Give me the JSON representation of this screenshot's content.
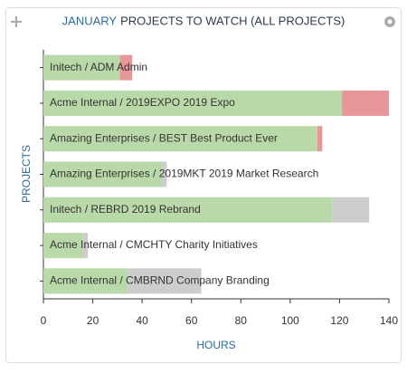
{
  "chart_data": {
    "type": "bar",
    "orientation": "horizontal",
    "stacked": true,
    "title_highlight": "JANUARY",
    "title": "PROJECTS TO WATCH (ALL PROJECTS)",
    "x_label": "HOURS",
    "y_label": "PROJECTS",
    "categories": [
      "Initech / ADM Admin",
      "Acme Internal / 2019EXPO 2019 Expo",
      "Amazing Enterprises / BEST Best Product Ever",
      "Amazing Enterprises / 2019MKT 2019 Market Research",
      "Initech / REBRD 2019 Rebrand",
      "Acme Internal / CMCHTY Charity Initiatives",
      "Acme Internal / CMBRND Company Branding"
    ],
    "series": [
      {
        "color": "#bad9a8",
        "values": [
          31,
          121,
          111,
          48,
          117,
          16,
          34
        ]
      },
      {
        "color": "#e8969a",
        "values": [
          5,
          19,
          2,
          0,
          0,
          0,
          0
        ]
      },
      {
        "color": "#cdcdcd",
        "values": [
          0,
          0,
          0,
          2,
          15,
          2,
          30
        ]
      }
    ],
    "xlim": [
      0,
      140
    ],
    "xticks": [
      0,
      20,
      40,
      60,
      80,
      100,
      120,
      140
    ]
  }
}
